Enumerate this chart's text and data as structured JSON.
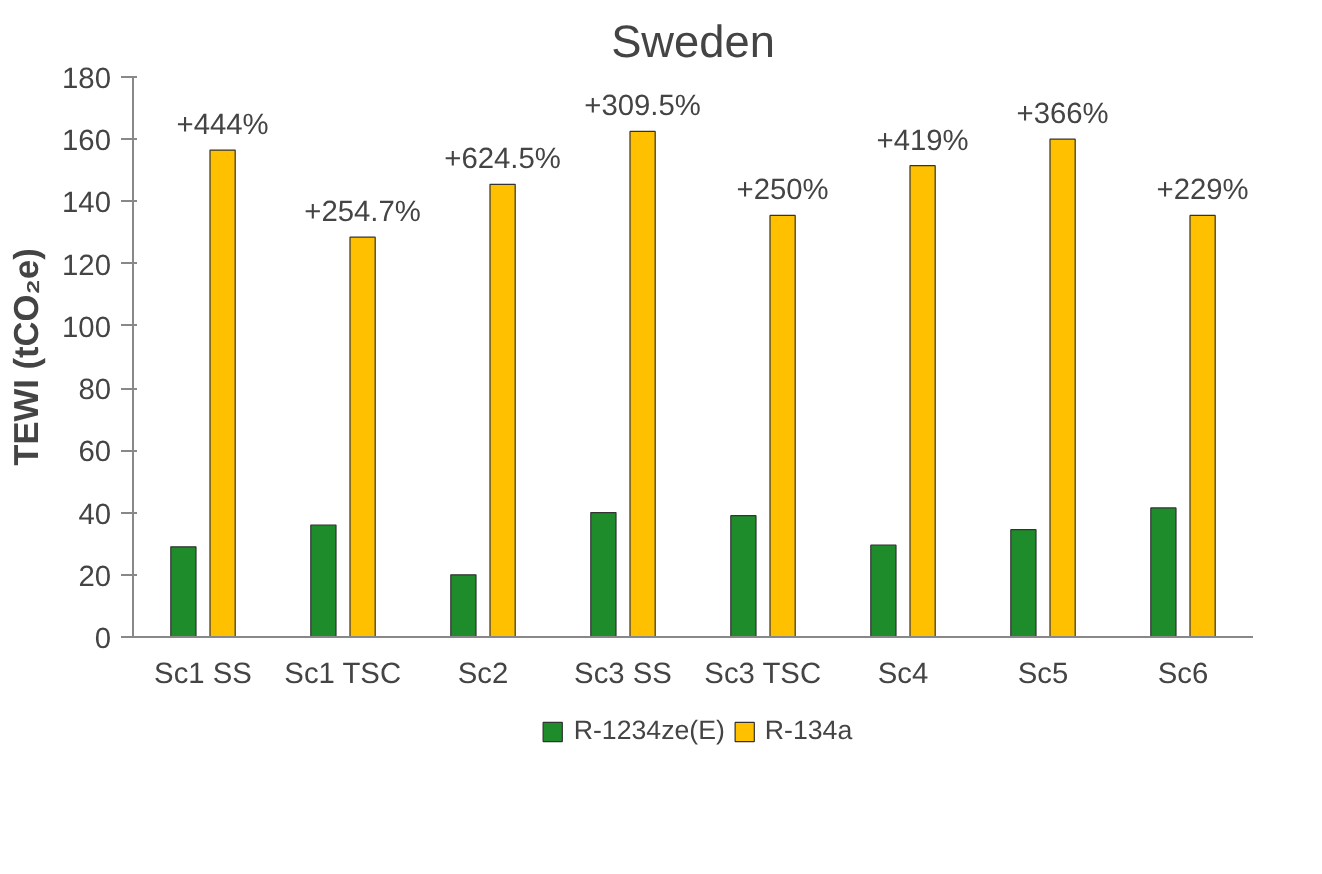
{
  "chart_data": {
    "type": "bar",
    "title": "Sweden",
    "ylabel": "TEWI (tCO₂e)",
    "categories": [
      "Sc1 SS",
      "Sc1 TSC",
      "Sc2",
      "Sc3 SS",
      "Sc3 TSC",
      "Sc4",
      "Sc5",
      "Sc6"
    ],
    "series": [
      {
        "name": "R-1234ze(E)",
        "color": "#1e8c2a",
        "values": [
          29,
          36,
          20,
          40,
          39,
          29.5,
          34.5,
          41.5
        ]
      },
      {
        "name": "R-134a",
        "color": "#ffc000",
        "values": [
          156.5,
          128.5,
          145.5,
          162.5,
          135.5,
          151.5,
          160,
          135.5
        ]
      }
    ],
    "ylim": [
      0,
      180
    ],
    "yticks": [
      0,
      20,
      40,
      60,
      80,
      100,
      120,
      140,
      160,
      180
    ],
    "grid": false,
    "legend": "bottom",
    "annotations": [
      {
        "text": "+444%",
        "x": "Sc1 SS",
        "y": 156.5
      },
      {
        "text": "+254.7%",
        "x": "Sc1 TSC",
        "y": 128.5
      },
      {
        "text": "+624.5%",
        "x": "Sc2",
        "y": 145.5
      },
      {
        "text": "+309.5%",
        "x": "Sc3 SS",
        "y": 162.5
      },
      {
        "text": "+250%",
        "x": "Sc3 TSC",
        "y": 135.5
      },
      {
        "text": "+419%",
        "x": "Sc4",
        "y": 151.5
      },
      {
        "text": "+366%",
        "x": "Sc5",
        "y": 160
      },
      {
        "text": "+229%",
        "x": "Sc6",
        "y": 135.5
      }
    ]
  }
}
